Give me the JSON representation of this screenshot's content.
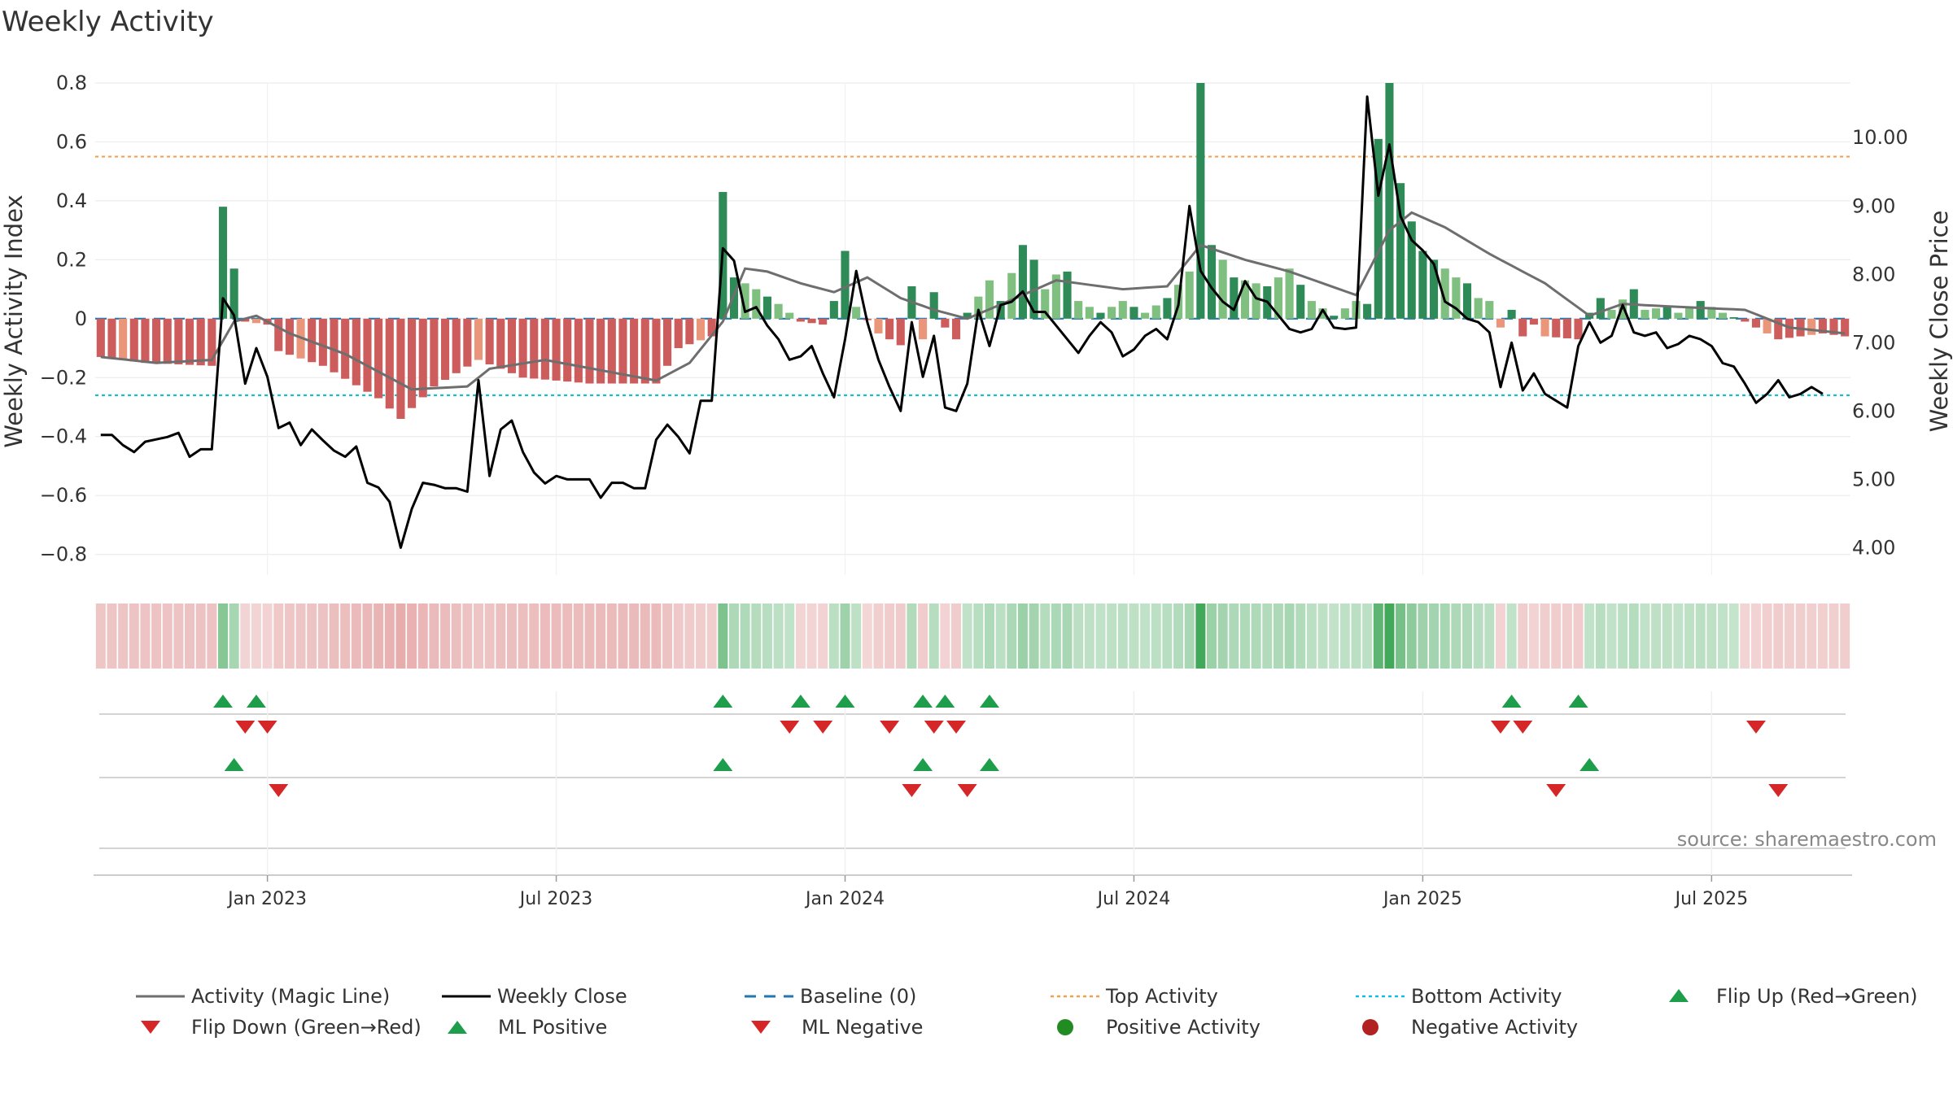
{
  "colors": {
    "strong_green": "#2e8b57",
    "light_green": "#7fbf7f",
    "strong_red": "#cd5c5c",
    "light_red": "#e9967a",
    "magic_line": "#6e6e6e",
    "close_line": "#000000",
    "baseline": "#1f77b4",
    "top_line": "#f0a050",
    "bottom_line": "#17becf",
    "marker_up": "#1e9e4a",
    "marker_down": "#d62728",
    "positive_dot": "#228b22",
    "negative_dot": "#b22222"
  },
  "chart_data": {
    "type": "bar+line",
    "title": "Weekly Activity",
    "ylabel_left": "Weekly Activity Index",
    "ylabel_right": "Weekly Close Price",
    "source": "source: sharemaestro.com",
    "left_axis": {
      "range": [
        -0.87,
        0.8
      ],
      "ticks": [
        {
          "v": 0.8,
          "label": "0.8"
        },
        {
          "v": 0.6,
          "label": "0.6"
        },
        {
          "v": 0.4,
          "label": "0.4"
        },
        {
          "v": 0.2,
          "label": "0.2"
        },
        {
          "v": 0.0,
          "label": "0"
        },
        {
          "v": -0.2,
          "label": "−0.2"
        },
        {
          "v": -0.4,
          "label": "−0.4"
        },
        {
          "v": -0.6,
          "label": "−0.6"
        },
        {
          "v": -0.8,
          "label": "−0.8"
        }
      ]
    },
    "right_axis": {
      "range": [
        3.6,
        10.8
      ],
      "ticks": [
        {
          "v": 10,
          "label": "10.00"
        },
        {
          "v": 9,
          "label": "9.00"
        },
        {
          "v": 8,
          "label": "8.00"
        },
        {
          "v": 7,
          "label": "7.00"
        },
        {
          "v": 6,
          "label": "6.00"
        },
        {
          "v": 5,
          "label": "5.00"
        },
        {
          "v": 4,
          "label": "4.00"
        }
      ]
    },
    "top_activity": 0.55,
    "bottom_activity": -0.26,
    "week_count": 158,
    "x_ticks": [
      {
        "week": 15,
        "label": "Jan 2023"
      },
      {
        "week": 41,
        "label": "Jul 2023"
      },
      {
        "week": 67,
        "label": "Jan 2024"
      },
      {
        "week": 93,
        "label": "Jul 2024"
      },
      {
        "week": 119,
        "label": "Jan 2025"
      },
      {
        "week": 145,
        "label": "Jul 2025"
      }
    ],
    "activity_keys": [
      {
        "w": 0,
        "v": -0.13
      },
      {
        "w": 4,
        "v": -0.15
      },
      {
        "w": 10,
        "v": -0.16
      },
      {
        "w": 11,
        "v": 0.38
      },
      {
        "w": 12,
        "v": 0.17
      },
      {
        "w": 13,
        "v": -0.01
      },
      {
        "w": 15,
        "v": -0.02
      },
      {
        "w": 16,
        "v": -0.11
      },
      {
        "w": 20,
        "v": -0.16
      },
      {
        "w": 25,
        "v": -0.27
      },
      {
        "w": 27,
        "v": -0.34
      },
      {
        "w": 30,
        "v": -0.23
      },
      {
        "w": 34,
        "v": -0.14
      },
      {
        "w": 38,
        "v": -0.2
      },
      {
        "w": 44,
        "v": -0.22
      },
      {
        "w": 50,
        "v": -0.22
      },
      {
        "w": 52,
        "v": -0.1
      },
      {
        "w": 55,
        "v": -0.06
      },
      {
        "w": 56,
        "v": 0.43
      },
      {
        "w": 57,
        "v": 0.14
      },
      {
        "w": 59,
        "v": 0.1
      },
      {
        "w": 61,
        "v": 0.05
      },
      {
        "w": 63,
        "v": -0.01
      },
      {
        "w": 65,
        "v": -0.02
      },
      {
        "w": 66,
        "v": 0.06
      },
      {
        "w": 67,
        "v": 0.23
      },
      {
        "w": 68,
        "v": 0.04
      },
      {
        "w": 70,
        "v": -0.05
      },
      {
        "w": 72,
        "v": -0.09
      },
      {
        "w": 73,
        "v": 0.11
      },
      {
        "w": 74,
        "v": -0.07
      },
      {
        "w": 75,
        "v": 0.09
      },
      {
        "w": 76,
        "v": -0.03
      },
      {
        "w": 77,
        "v": -0.07
      },
      {
        "w": 78,
        "v": 0.02
      },
      {
        "w": 80,
        "v": 0.13
      },
      {
        "w": 81,
        "v": 0.06
      },
      {
        "w": 83,
        "v": 0.25
      },
      {
        "w": 84,
        "v": 0.2
      },
      {
        "w": 85,
        "v": 0.1
      },
      {
        "w": 86,
        "v": 0.15
      },
      {
        "w": 87,
        "v": 0.16
      },
      {
        "w": 88,
        "v": 0.06
      },
      {
        "w": 89,
        "v": 0.04
      },
      {
        "w": 90,
        "v": 0.02
      },
      {
        "w": 92,
        "v": 0.06
      },
      {
        "w": 94,
        "v": 0.02
      },
      {
        "w": 96,
        "v": 0.07
      },
      {
        "w": 98,
        "v": 0.16
      },
      {
        "w": 99,
        "v": 0.8
      },
      {
        "w": 100,
        "v": 0.25
      },
      {
        "w": 101,
        "v": 0.2
      },
      {
        "w": 102,
        "v": 0.14
      },
      {
        "w": 105,
        "v": 0.11
      },
      {
        "w": 107,
        "v": 0.17
      },
      {
        "w": 109,
        "v": 0.06
      },
      {
        "w": 111,
        "v": 0.01
      },
      {
        "w": 113,
        "v": 0.06
      },
      {
        "w": 114,
        "v": 0.05
      },
      {
        "w": 115,
        "v": 0.61
      },
      {
        "w": 116,
        "v": 0.8
      },
      {
        "w": 117,
        "v": 0.46
      },
      {
        "w": 118,
        "v": 0.33
      },
      {
        "w": 119,
        "v": 0.23
      },
      {
        "w": 120,
        "v": 0.2
      },
      {
        "w": 121,
        "v": 0.17
      },
      {
        "w": 122,
        "v": 0.14
      },
      {
        "w": 123,
        "v": 0.12
      },
      {
        "w": 124,
        "v": 0.07
      },
      {
        "w": 125,
        "v": 0.06
      },
      {
        "w": 126,
        "v": -0.03
      },
      {
        "w": 127,
        "v": 0.03
      },
      {
        "w": 128,
        "v": -0.06
      },
      {
        "w": 129,
        "v": -0.02
      },
      {
        "w": 130,
        "v": -0.06
      },
      {
        "w": 133,
        "v": -0.07
      },
      {
        "w": 134,
        "v": 0.02
      },
      {
        "w": 135,
        "v": 0.07
      },
      {
        "w": 136,
        "v": 0.03
      },
      {
        "w": 138,
        "v": 0.1
      },
      {
        "w": 139,
        "v": 0.03
      },
      {
        "w": 141,
        "v": 0.04
      },
      {
        "w": 142,
        "v": 0.02
      },
      {
        "w": 144,
        "v": 0.06
      },
      {
        "w": 146,
        "v": 0.02
      },
      {
        "w": 148,
        "v": -0.01
      },
      {
        "w": 150,
        "v": -0.05
      },
      {
        "w": 151,
        "v": -0.07
      },
      {
        "w": 153,
        "v": -0.06
      },
      {
        "w": 155,
        "v": -0.05
      },
      {
        "w": 157,
        "v": -0.06
      }
    ],
    "magic_keys": [
      {
        "w": 0,
        "v": -0.13
      },
      {
        "w": 5,
        "v": -0.15
      },
      {
        "w": 10,
        "v": -0.14
      },
      {
        "w": 12,
        "v": -0.01
      },
      {
        "w": 14,
        "v": 0.01
      },
      {
        "w": 17,
        "v": -0.05
      },
      {
        "w": 22,
        "v": -0.12
      },
      {
        "w": 26,
        "v": -0.2
      },
      {
        "w": 28,
        "v": -0.24
      },
      {
        "w": 33,
        "v": -0.23
      },
      {
        "w": 35,
        "v": -0.17
      },
      {
        "w": 40,
        "v": -0.14
      },
      {
        "w": 50,
        "v": -0.21
      },
      {
        "w": 53,
        "v": -0.15
      },
      {
        "w": 56,
        "v": -0.01
      },
      {
        "w": 58,
        "v": 0.17
      },
      {
        "w": 60,
        "v": 0.16
      },
      {
        "w": 63,
        "v": 0.12
      },
      {
        "w": 66,
        "v": 0.09
      },
      {
        "w": 69,
        "v": 0.14
      },
      {
        "w": 72,
        "v": 0.07
      },
      {
        "w": 75,
        "v": 0.03
      },
      {
        "w": 78,
        "v": 0.0
      },
      {
        "w": 83,
        "v": 0.08
      },
      {
        "w": 86,
        "v": 0.13
      },
      {
        "w": 92,
        "v": 0.1
      },
      {
        "w": 96,
        "v": 0.11
      },
      {
        "w": 99,
        "v": 0.25
      },
      {
        "w": 103,
        "v": 0.2
      },
      {
        "w": 107,
        "v": 0.16
      },
      {
        "w": 113,
        "v": 0.08
      },
      {
        "w": 116,
        "v": 0.3
      },
      {
        "w": 118,
        "v": 0.36
      },
      {
        "w": 121,
        "v": 0.31
      },
      {
        "w": 125,
        "v": 0.22
      },
      {
        "w": 130,
        "v": 0.12
      },
      {
        "w": 134,
        "v": 0.01
      },
      {
        "w": 137,
        "v": 0.05
      },
      {
        "w": 142,
        "v": 0.04
      },
      {
        "w": 148,
        "v": 0.03
      },
      {
        "w": 152,
        "v": -0.03
      },
      {
        "w": 157,
        "v": -0.05
      }
    ],
    "close_keys": [
      {
        "w": 0,
        "v": 5.65
      },
      {
        "w": 1,
        "v": 5.65
      },
      {
        "w": 2,
        "v": 5.5
      },
      {
        "w": 3,
        "v": 5.4
      },
      {
        "w": 4,
        "v": 5.55
      },
      {
        "w": 6,
        "v": 5.62
      },
      {
        "w": 7,
        "v": 5.68
      },
      {
        "w": 8,
        "v": 5.33
      },
      {
        "w": 9,
        "v": 5.44
      },
      {
        "w": 10,
        "v": 5.44
      },
      {
        "w": 11,
        "v": 7.65
      },
      {
        "w": 12,
        "v": 7.4
      },
      {
        "w": 13,
        "v": 6.4
      },
      {
        "w": 14,
        "v": 6.92
      },
      {
        "w": 15,
        "v": 6.5
      },
      {
        "w": 16,
        "v": 5.75
      },
      {
        "w": 17,
        "v": 5.83
      },
      {
        "w": 18,
        "v": 5.5
      },
      {
        "w": 19,
        "v": 5.73
      },
      {
        "w": 20,
        "v": 5.57
      },
      {
        "w": 21,
        "v": 5.42
      },
      {
        "w": 22,
        "v": 5.33
      },
      {
        "w": 23,
        "v": 5.48
      },
      {
        "w": 24,
        "v": 4.95
      },
      {
        "w": 25,
        "v": 4.88
      },
      {
        "w": 26,
        "v": 4.67
      },
      {
        "w": 27,
        "v": 4.0
      },
      {
        "w": 28,
        "v": 4.57
      },
      {
        "w": 29,
        "v": 4.95
      },
      {
        "w": 30,
        "v": 4.92
      },
      {
        "w": 31,
        "v": 4.87
      },
      {
        "w": 32,
        "v": 4.87
      },
      {
        "w": 33,
        "v": 4.82
      },
      {
        "w": 34,
        "v": 6.45
      },
      {
        "w": 35,
        "v": 5.05
      },
      {
        "w": 36,
        "v": 5.73
      },
      {
        "w": 37,
        "v": 5.86
      },
      {
        "w": 38,
        "v": 5.4
      },
      {
        "w": 39,
        "v": 5.1
      },
      {
        "w": 40,
        "v": 4.94
      },
      {
        "w": 41,
        "v": 5.05
      },
      {
        "w": 42,
        "v": 5.0
      },
      {
        "w": 43,
        "v": 5.0
      },
      {
        "w": 44,
        "v": 5.0
      },
      {
        "w": 45,
        "v": 4.73
      },
      {
        "w": 46,
        "v": 4.95
      },
      {
        "w": 47,
        "v": 4.95
      },
      {
        "w": 48,
        "v": 4.87
      },
      {
        "w": 49,
        "v": 4.87
      },
      {
        "w": 50,
        "v": 5.58
      },
      {
        "w": 51,
        "v": 5.8
      },
      {
        "w": 52,
        "v": 5.62
      },
      {
        "w": 53,
        "v": 5.38
      },
      {
        "w": 54,
        "v": 6.15
      },
      {
        "w": 55,
        "v": 6.15
      },
      {
        "w": 56,
        "v": 8.38
      },
      {
        "w": 57,
        "v": 8.2
      },
      {
        "w": 58,
        "v": 7.45
      },
      {
        "w": 59,
        "v": 7.52
      },
      {
        "w": 60,
        "v": 7.25
      },
      {
        "w": 61,
        "v": 7.05
      },
      {
        "w": 62,
        "v": 6.75
      },
      {
        "w": 63,
        "v": 6.8
      },
      {
        "w": 64,
        "v": 6.95
      },
      {
        "w": 65,
        "v": 6.55
      },
      {
        "w": 66,
        "v": 6.2
      },
      {
        "w": 67,
        "v": 7.05
      },
      {
        "w": 68,
        "v": 8.05
      },
      {
        "w": 69,
        "v": 7.3
      },
      {
        "w": 70,
        "v": 6.75
      },
      {
        "w": 71,
        "v": 6.35
      },
      {
        "w": 72,
        "v": 6.0
      },
      {
        "w": 73,
        "v": 7.3
      },
      {
        "w": 74,
        "v": 6.5
      },
      {
        "w": 75,
        "v": 7.1
      },
      {
        "w": 76,
        "v": 6.05
      },
      {
        "w": 77,
        "v": 6.0
      },
      {
        "w": 78,
        "v": 6.4
      },
      {
        "w": 79,
        "v": 7.48
      },
      {
        "w": 80,
        "v": 6.95
      },
      {
        "w": 81,
        "v": 7.55
      },
      {
        "w": 82,
        "v": 7.6
      },
      {
        "w": 83,
        "v": 7.75
      },
      {
        "w": 84,
        "v": 7.45
      },
      {
        "w": 85,
        "v": 7.45
      },
      {
        "w": 86,
        "v": 7.25
      },
      {
        "w": 87,
        "v": 7.05
      },
      {
        "w": 88,
        "v": 6.85
      },
      {
        "w": 89,
        "v": 7.1
      },
      {
        "w": 90,
        "v": 7.3
      },
      {
        "w": 91,
        "v": 7.15
      },
      {
        "w": 92,
        "v": 6.8
      },
      {
        "w": 93,
        "v": 6.9
      },
      {
        "w": 94,
        "v": 7.1
      },
      {
        "w": 95,
        "v": 7.2
      },
      {
        "w": 96,
        "v": 7.05
      },
      {
        "w": 97,
        "v": 7.55
      },
      {
        "w": 98,
        "v": 9.0
      },
      {
        "w": 99,
        "v": 8.05
      },
      {
        "w": 100,
        "v": 7.8
      },
      {
        "w": 101,
        "v": 7.6
      },
      {
        "w": 102,
        "v": 7.48
      },
      {
        "w": 103,
        "v": 7.9
      },
      {
        "w": 104,
        "v": 7.65
      },
      {
        "w": 105,
        "v": 7.6
      },
      {
        "w": 106,
        "v": 7.4
      },
      {
        "w": 107,
        "v": 7.2
      },
      {
        "w": 108,
        "v": 7.15
      },
      {
        "w": 109,
        "v": 7.2
      },
      {
        "w": 110,
        "v": 7.48
      },
      {
        "w": 111,
        "v": 7.22
      },
      {
        "w": 112,
        "v": 7.2
      },
      {
        "w": 113,
        "v": 7.22
      },
      {
        "w": 114,
        "v": 10.6
      },
      {
        "w": 115,
        "v": 9.15
      },
      {
        "w": 116,
        "v": 9.9
      },
      {
        "w": 117,
        "v": 8.85
      },
      {
        "w": 118,
        "v": 8.5
      },
      {
        "w": 119,
        "v": 8.35
      },
      {
        "w": 120,
        "v": 8.15
      },
      {
        "w": 121,
        "v": 7.6
      },
      {
        "w": 122,
        "v": 7.5
      },
      {
        "w": 123,
        "v": 7.35
      },
      {
        "w": 124,
        "v": 7.3
      },
      {
        "w": 125,
        "v": 7.15
      },
      {
        "w": 126,
        "v": 6.35
      },
      {
        "w": 127,
        "v": 7.0
      },
      {
        "w": 128,
        "v": 6.3
      },
      {
        "w": 129,
        "v": 6.55
      },
      {
        "w": 130,
        "v": 6.25
      },
      {
        "w": 131,
        "v": 6.15
      },
      {
        "w": 132,
        "v": 6.05
      },
      {
        "w": 133,
        "v": 6.95
      },
      {
        "w": 134,
        "v": 7.3
      },
      {
        "w": 135,
        "v": 7.0
      },
      {
        "w": 136,
        "v": 7.1
      },
      {
        "w": 137,
        "v": 7.55
      },
      {
        "w": 138,
        "v": 7.15
      },
      {
        "w": 139,
        "v": 7.1
      },
      {
        "w": 140,
        "v": 7.15
      },
      {
        "w": 141,
        "v": 6.92
      },
      {
        "w": 142,
        "v": 6.98
      },
      {
        "w": 143,
        "v": 7.1
      },
      {
        "w": 144,
        "v": 7.05
      },
      {
        "w": 145,
        "v": 6.95
      },
      {
        "w": 146,
        "v": 6.7
      },
      {
        "w": 147,
        "v": 6.65
      },
      {
        "w": 148,
        "v": 6.4
      },
      {
        "w": 149,
        "v": 6.12
      },
      {
        "w": 150,
        "v": 6.25
      },
      {
        "w": 151,
        "v": 6.45
      },
      {
        "w": 152,
        "v": 6.2
      },
      {
        "w": 153,
        "v": 6.25
      },
      {
        "w": 154,
        "v": 6.35
      },
      {
        "w": 155,
        "v": 6.25
      }
    ],
    "flip_up_weeks": [
      11,
      14,
      56,
      63,
      67,
      74,
      76,
      80,
      127,
      133
    ],
    "flip_down_weeks": [
      13,
      15,
      62,
      65,
      71,
      75,
      77,
      126,
      128,
      149
    ],
    "ml_positive_weeks": [
      12,
      56,
      74,
      80,
      134
    ],
    "ml_negative_weeks": [
      16,
      73,
      78,
      131,
      151
    ],
    "legend": [
      {
        "key": "magic",
        "label": "Activity (Magic Line)"
      },
      {
        "key": "close",
        "label": "Weekly Close"
      },
      {
        "key": "baseline",
        "label": "Baseline (0)"
      },
      {
        "key": "top",
        "label": "Top Activity"
      },
      {
        "key": "bottom",
        "label": "Bottom Activity"
      },
      {
        "key": "flipup",
        "label": "Flip Up (Red→Green)"
      },
      {
        "key": "flipdown",
        "label": "Flip Down (Green→Red)"
      },
      {
        "key": "mlpos",
        "label": "ML Positive"
      },
      {
        "key": "mlneg",
        "label": "ML Negative"
      },
      {
        "key": "posact",
        "label": "Positive Activity"
      },
      {
        "key": "negact",
        "label": "Negative Activity"
      }
    ]
  }
}
